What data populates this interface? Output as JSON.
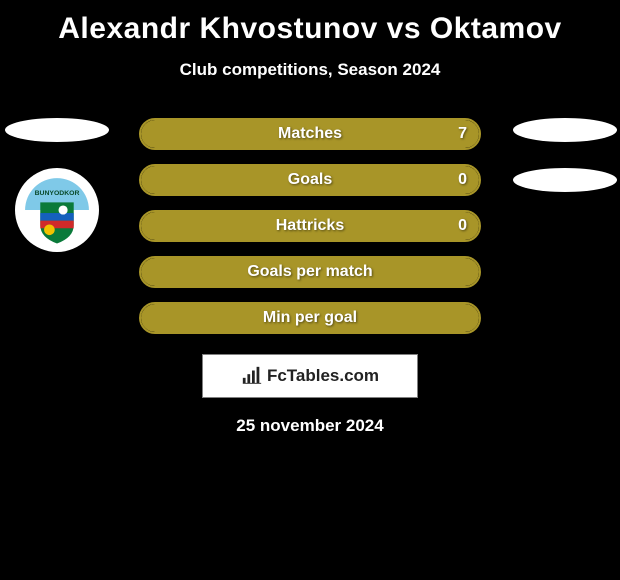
{
  "title": "Alexandr Khvostunov vs Oktamov",
  "subtitle": "Club competitions, Season 2024",
  "footer_date": "25 november 2024",
  "logo_text": "FcTables.com",
  "colors": {
    "title": "#ffffff",
    "background": "#000000",
    "stat_border": "#a89528",
    "stat_fill": "#a89528",
    "flag_oval": "#ffffff",
    "logo_box_bg": "#ffffff",
    "logo_box_border": "#808080"
  },
  "title_fontsize": 30,
  "subtitle_fontsize": 17,
  "stat_label_fontsize": 16,
  "crest": {
    "name": "BUNYODKOR",
    "top_color": "#7fc9e8",
    "shield_top": "#0a7a3a",
    "shield_mid_blue": "#1560bd",
    "shield_mid_red": "#d02a2a",
    "sun": "#f2c200",
    "ball": "#ffffff"
  },
  "stats": [
    {
      "label": "Matches",
      "value": "7",
      "fill_pct": 100,
      "show_value": true
    },
    {
      "label": "Goals",
      "value": "0",
      "fill_pct": 100,
      "show_value": true
    },
    {
      "label": "Hattricks",
      "value": "0",
      "fill_pct": 100,
      "show_value": true
    },
    {
      "label": "Goals per match",
      "value": "",
      "fill_pct": 100,
      "show_value": false
    },
    {
      "label": "Min per goal",
      "value": "",
      "fill_pct": 100,
      "show_value": false
    }
  ]
}
